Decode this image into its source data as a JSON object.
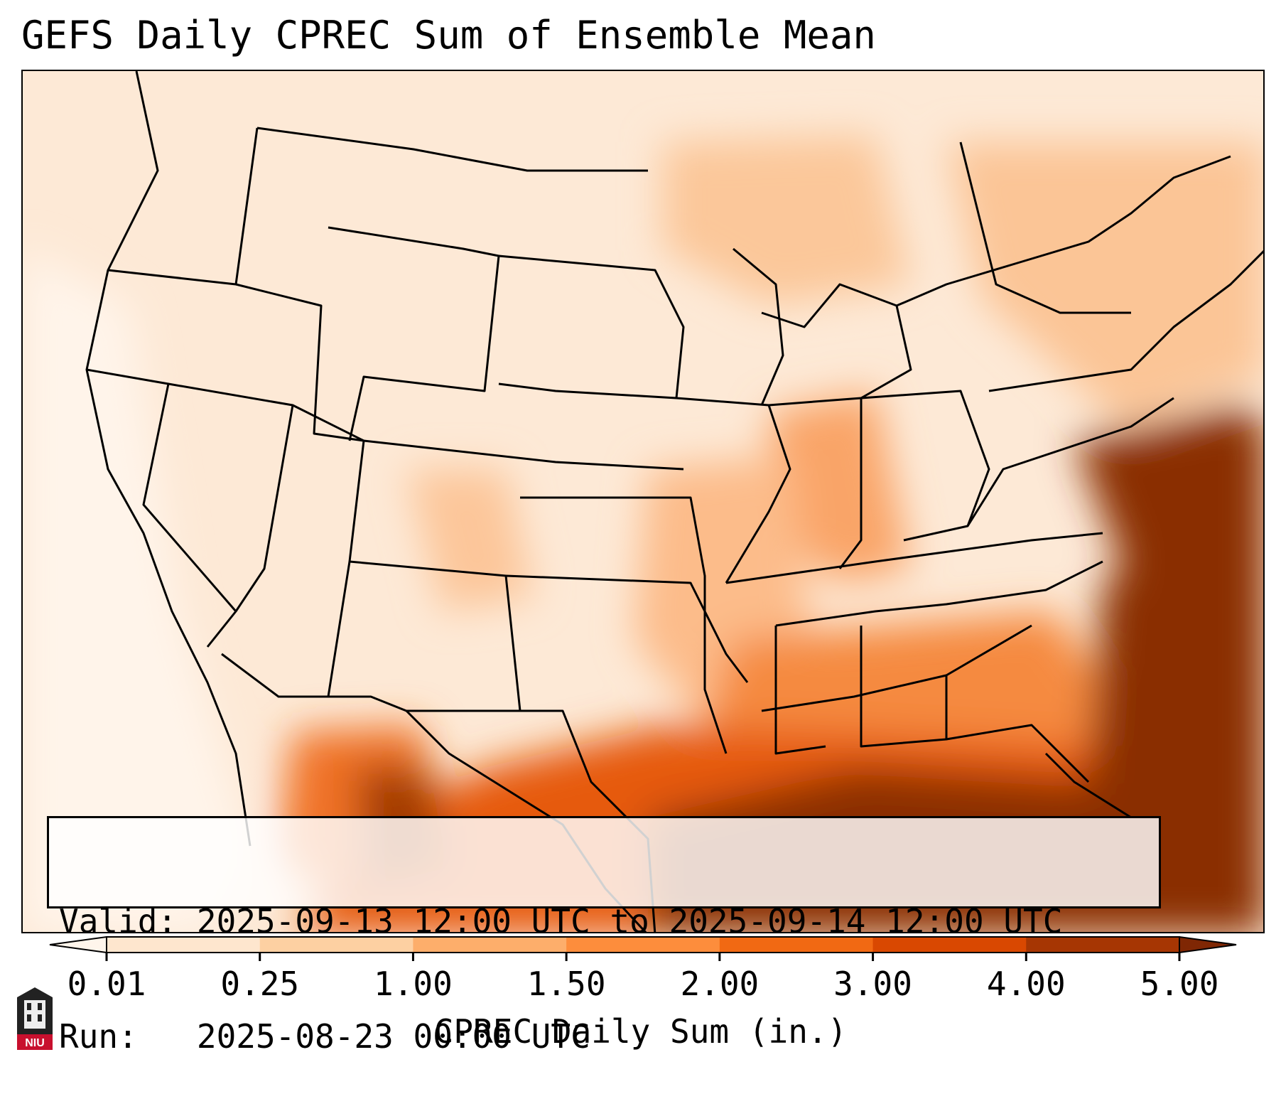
{
  "title": "GEFS Daily CPREC Sum of Ensemble Mean",
  "info": {
    "valid_label": "Valid:",
    "valid_text": "2025-09-13 12:00 UTC to 2025-09-14 12:00 UTC",
    "run_label": "Run:  ",
    "run_text": "2025-08-23 00:00 UTC"
  },
  "colorbar": {
    "label": "CPREC Daily Sum (in.)",
    "ticks": [
      "0.01",
      "0.25",
      "1.00",
      "1.50",
      "2.00",
      "3.00",
      "4.00",
      "5.00"
    ],
    "colors": [
      "#fff5eb",
      "#fee6ce",
      "#fdd0a2",
      "#fdae6b",
      "#fd8d3c",
      "#f16913",
      "#d94801",
      "#a63603",
      "#7f2704"
    ]
  },
  "logo": {
    "text": "NIU",
    "icon": "niu-tower-icon"
  }
}
